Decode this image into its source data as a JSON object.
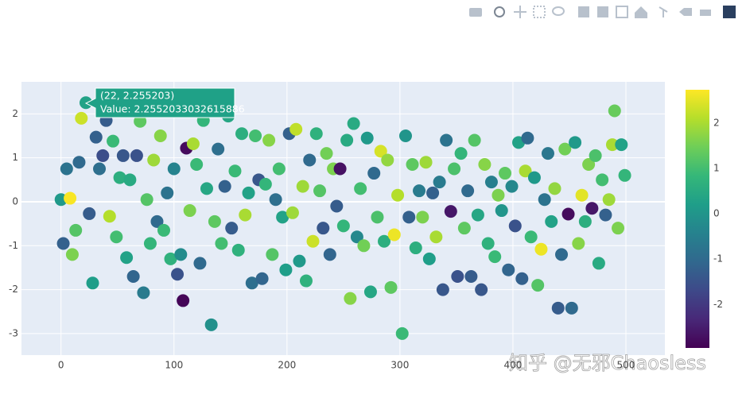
{
  "chart_data": {
    "type": "scatter",
    "x": [
      0,
      2,
      5,
      8,
      10,
      13,
      16,
      18,
      22,
      25,
      28,
      31,
      34,
      37,
      40,
      43,
      46,
      49,
      52,
      55,
      58,
      61,
      64,
      67,
      70,
      73,
      76,
      79,
      82,
      85,
      88,
      91,
      94,
      97,
      100,
      103,
      106,
      108,
      111,
      114,
      117,
      120,
      123,
      126,
      129,
      133,
      136,
      139,
      142,
      145,
      148,
      151,
      154,
      157,
      160,
      163,
      166,
      169,
      172,
      175,
      178,
      181,
      184,
      187,
      190,
      193,
      196,
      199,
      202,
      205,
      208,
      211,
      214,
      217,
      220,
      223,
      226,
      229,
      232,
      235,
      238,
      241,
      244,
      247,
      250,
      253,
      256,
      259,
      262,
      265,
      268,
      271,
      274,
      277,
      280,
      283,
      286,
      289,
      292,
      295,
      298,
      302,
      305,
      308,
      311,
      314,
      317,
      320,
      323,
      326,
      329,
      332,
      335,
      338,
      341,
      345,
      348,
      351,
      354,
      357,
      360,
      363,
      366,
      369,
      372,
      375,
      378,
      381,
      384,
      387,
      390,
      393,
      396,
      399,
      402,
      405,
      408,
      411,
      413,
      416,
      419,
      422,
      425,
      428,
      431,
      434,
      437,
      440,
      443,
      446,
      449,
      452,
      455,
      458,
      461,
      464,
      467,
      470,
      473,
      476,
      479,
      482,
      485,
      488,
      490,
      493,
      496,
      499
    ],
    "y": [
      0.05,
      -0.95,
      0.75,
      0.08,
      -1.2,
      -0.65,
      0.9,
      1.9,
      2.255,
      -0.27,
      -1.85,
      1.47,
      0.75,
      1.05,
      1.85,
      -0.33,
      1.38,
      -0.8,
      0.55,
      1.05,
      -1.27,
      0.5,
      -1.7,
      1.05,
      1.83,
      -2.07,
      0.05,
      -0.95,
      0.95,
      -0.45,
      1.5,
      -0.65,
      0.2,
      -1.3,
      0.75,
      -1.65,
      -1.2,
      -2.25,
      1.22,
      -0.2,
      1.32,
      0.85,
      -1.4,
      1.85,
      0.3,
      -2.8,
      -0.45,
      1.2,
      -0.95,
      0.35,
      1.95,
      -0.6,
      0.7,
      -1.1,
      1.55,
      -0.3,
      0.2,
      -1.85,
      1.5,
      0.5,
      -1.75,
      0.4,
      1.4,
      -1.2,
      0.05,
      0.75,
      -0.35,
      -1.55,
      1.55,
      -0.25,
      1.65,
      -1.35,
      0.35,
      -1.8,
      0.95,
      -0.9,
      1.55,
      0.25,
      -0.6,
      1.1,
      -1.2,
      0.75,
      -0.1,
      0.75,
      -0.55,
      1.4,
      -2.2,
      1.78,
      -0.8,
      0.3,
      -1.0,
      1.45,
      -2.05,
      0.65,
      -0.35,
      1.15,
      -0.9,
      0.95,
      -1.95,
      -0.75,
      0.15,
      -3.0,
      1.5,
      -0.35,
      0.85,
      -1.05,
      0.25,
      -0.35,
      0.9,
      -1.3,
      0.2,
      -0.8,
      0.45,
      -2.0,
      1.4,
      -0.22,
      0.75,
      -1.7,
      1.1,
      -0.6,
      0.25,
      -1.7,
      1.4,
      -0.3,
      -2.0,
      0.85,
      -0.95,
      0.45,
      -1.25,
      0.15,
      -0.2,
      0.65,
      -1.55,
      0.35,
      -0.55,
      1.35,
      -1.75,
      0.7,
      1.45,
      -0.8,
      0.55,
      -1.9,
      -1.08,
      0.05,
      1.1,
      -0.45,
      0.3,
      -2.42,
      -1.2,
      1.2,
      -0.28,
      -2.42,
      1.35,
      -0.95,
      0.15,
      -0.45,
      0.85,
      -0.15,
      1.05,
      -1.4,
      0.5,
      -0.3,
      0.05,
      1.3,
      2.07,
      -0.6,
      1.3,
      0.6
    ],
    "color_values": [
      0.1,
      -1.2,
      -0.8,
      2.7,
      1.6,
      1.2,
      -1.0,
      2.3,
      0.3,
      -1.3,
      0.2,
      -1.2,
      -0.9,
      -1.6,
      -1.3,
      2.1,
      0.9,
      1.0,
      0.6,
      -1.4,
      0.3,
      0.5,
      -1.1,
      -1.5,
      1.3,
      -0.6,
      1.2,
      0.8,
      1.9,
      -1.0,
      1.7,
      0.9,
      -0.8,
      0.7,
      -0.4,
      -1.5,
      -0.2,
      -2.9,
      -2.8,
      1.6,
      2.0,
      0.9,
      -1.0,
      0.8,
      0.4,
      -0.1,
      1.3,
      -0.9,
      1.0,
      -1.2,
      0.4,
      -1.3,
      0.9,
      0.7,
      0.6,
      2.0,
      0.3,
      -0.9,
      1.0,
      -1.4,
      -1.1,
      0.8,
      1.7,
      1.2,
      -0.9,
      1.0,
      0.3,
      0.2,
      -1.2,
      1.9,
      2.2,
      0.1,
      1.9,
      0.7,
      -1.0,
      2.3,
      0.7,
      1.2,
      -1.4,
      1.5,
      -1.1,
      1.6,
      -1.3,
      -2.7,
      0.8,
      0.5,
      1.7,
      0.5,
      -0.3,
      1.0,
      1.5,
      0.1,
      0.4,
      -1.0,
      1.1,
      2.4,
      0.6,
      1.8,
      1.3,
      2.6,
      2.1,
      0.9,
      0.0,
      -1.2,
      1.3,
      0.6,
      -0.6,
      1.6,
      1.9,
      0.2,
      -1.2,
      2.0,
      -0.6,
      -1.4,
      -0.8,
      -2.6,
      1.1,
      -1.5,
      0.8,
      1.3,
      -1.0,
      -1.3,
      1.2,
      0.4,
      -1.4,
      1.7,
      0.7,
      -0.5,
      0.9,
      1.6,
      0.0,
      1.3,
      -1.1,
      -0.3,
      -1.5,
      0.3,
      -1.2,
      2.0,
      -1.0,
      0.9,
      0.1,
      1.2,
      2.6,
      -0.8,
      -0.7,
      0.3,
      1.8,
      -1.3,
      -1.0,
      1.5,
      -2.8,
      -1.0,
      0.1,
      1.7,
      2.5,
      0.6,
      1.6,
      -2.6,
      1.1,
      0.5,
      1.0,
      -1.2,
      1.9,
      2.0,
      1.4,
      1.6,
      0.3,
      0.8
    ],
    "colorscale": [
      "#440154",
      "#482878",
      "#3e4989",
      "#31688e",
      "#26828e",
      "#1f9e89",
      "#35b779",
      "#6ece58",
      "#b5de2b",
      "#fde725"
    ],
    "xlim": [
      -35,
      534.5
    ],
    "ylim": [
      -3.49,
      2.73
    ],
    "xticks": [
      0,
      100,
      200,
      300,
      400,
      500
    ],
    "yticks": [
      -3,
      -2,
      -1,
      0,
      1,
      2
    ],
    "grid": true,
    "colorbar": {
      "lim": [
        -2.96,
        2.74
      ],
      "ticks": [
        -2,
        -1,
        0,
        1,
        2
      ]
    },
    "hover": {
      "title": "(22, 2.255203)",
      "text": "Value: 2.2552033032615886"
    },
    "watermark": "知乎 @无邪Chaosless"
  }
}
